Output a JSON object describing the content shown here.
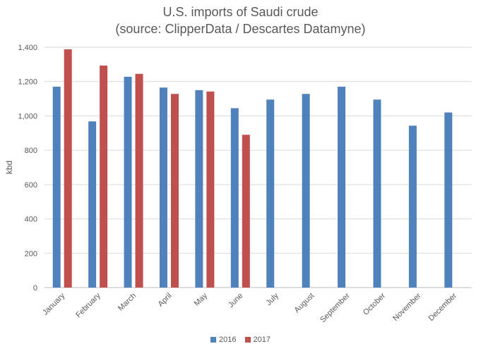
{
  "chart_data": {
    "type": "bar",
    "title": "U.S. imports of Saudi crude",
    "subtitle": "(source: ClipperData / Descartes Datamyne)",
    "xlabel": "",
    "ylabel": "kbd",
    "ylim": [
      0,
      1400
    ],
    "yticks": [
      0,
      200,
      400,
      600,
      800,
      1000,
      1200,
      1400
    ],
    "ytick_labels": [
      "0",
      "200",
      "400",
      "600",
      "800",
      "1,000",
      "1,200",
      "1,400"
    ],
    "categories": [
      "January",
      "February",
      "March",
      "April",
      "May",
      "June",
      "July",
      "August",
      "September",
      "October",
      "November",
      "December"
    ],
    "series": [
      {
        "name": "2016",
        "color": "#4f81bd",
        "values": [
          1170,
          968,
          1228,
          1165,
          1150,
          1045,
          1095,
          1128,
          1170,
          1095,
          943,
          1020
        ]
      },
      {
        "name": "2017",
        "color": "#c0504d",
        "values": [
          1388,
          1293,
          1245,
          1128,
          1142,
          890,
          null,
          null,
          null,
          null,
          null,
          null
        ]
      }
    ],
    "grid": true,
    "legend_position": "bottom"
  }
}
